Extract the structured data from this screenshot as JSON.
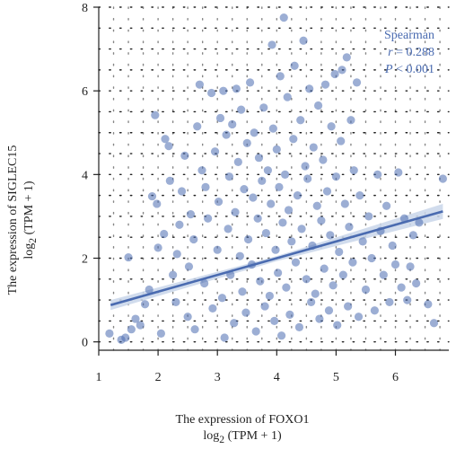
{
  "chart_data": {
    "type": "scatter",
    "xlabel_line1": "The expression of FOXO1",
    "xlabel_line2_prefix": "log",
    "xlabel_line2_sub": "2",
    "xlabel_line2_suffix": " (TPM + 1)",
    "ylabel_line1": "The expression of SIGLEC15",
    "ylabel_line2_prefix": "log",
    "ylabel_line2_sub": "2",
    "ylabel_line2_suffix": " (TPM + 1)",
    "xlim": [
      1.0,
      6.9
    ],
    "ylim": [
      -0.2,
      8.0
    ],
    "xticks": [
      1,
      2,
      3,
      4,
      5,
      6
    ],
    "yticks": [
      0,
      2,
      4,
      6,
      8
    ],
    "grid": "dotted",
    "point_color": "#4a6bb0",
    "band_color": "#c9d6ea",
    "stats": {
      "method": "Spearman",
      "r_label": "r",
      "r_value": " = 0.288",
      "p_label": "P",
      "p_value": " < 0.001"
    },
    "regression": {
      "x": [
        1.2,
        6.8
      ],
      "y": [
        0.88,
        3.12
      ]
    },
    "ci_band": {
      "x": [
        1.2,
        4.0,
        6.8
      ],
      "upper": [
        1.0,
        2.05,
        3.3
      ],
      "lower": [
        0.76,
        1.93,
        2.94
      ]
    },
    "points": [
      [
        1.18,
        0.2
      ],
      [
        1.38,
        0.05
      ],
      [
        1.45,
        0.1
      ],
      [
        1.5,
        2.02
      ],
      [
        1.55,
        0.3
      ],
      [
        1.62,
        0.55
      ],
      [
        1.7,
        0.4
      ],
      [
        1.78,
        0.9
      ],
      [
        1.85,
        1.25
      ],
      [
        1.9,
        3.48
      ],
      [
        1.95,
        5.42
      ],
      [
        1.98,
        3.3
      ],
      [
        2.0,
        2.25
      ],
      [
        2.05,
        0.2
      ],
      [
        2.1,
        2.58
      ],
      [
        2.12,
        4.85
      ],
      [
        2.18,
        4.68
      ],
      [
        2.2,
        3.85
      ],
      [
        2.25,
        1.6
      ],
      [
        2.3,
        0.95
      ],
      [
        2.32,
        2.1
      ],
      [
        2.36,
        2.8
      ],
      [
        2.4,
        3.6
      ],
      [
        2.45,
        4.45
      ],
      [
        2.5,
        0.6
      ],
      [
        2.52,
        1.8
      ],
      [
        2.55,
        3.05
      ],
      [
        2.6,
        2.45
      ],
      [
        2.62,
        0.3
      ],
      [
        2.66,
        5.15
      ],
      [
        2.7,
        6.15
      ],
      [
        2.74,
        4.1
      ],
      [
        2.78,
        1.4
      ],
      [
        2.8,
        3.7
      ],
      [
        2.84,
        2.95
      ],
      [
        2.9,
        5.95
      ],
      [
        2.92,
        0.8
      ],
      [
        2.96,
        4.55
      ],
      [
        3.0,
        2.2
      ],
      [
        3.02,
        3.35
      ],
      [
        3.05,
        5.35
      ],
      [
        3.08,
        1.05
      ],
      [
        3.1,
        6.0
      ],
      [
        3.12,
        0.1
      ],
      [
        3.15,
        4.95
      ],
      [
        3.18,
        2.7
      ],
      [
        3.2,
        3.95
      ],
      [
        3.22,
        1.6
      ],
      [
        3.25,
        5.2
      ],
      [
        3.28,
        0.45
      ],
      [
        3.3,
        3.1
      ],
      [
        3.32,
        6.05
      ],
      [
        3.35,
        4.3
      ],
      [
        3.38,
        2.05
      ],
      [
        3.4,
        5.55
      ],
      [
        3.42,
        1.2
      ],
      [
        3.45,
        3.65
      ],
      [
        3.48,
        0.7
      ],
      [
        3.5,
        4.75
      ],
      [
        3.52,
        2.45
      ],
      [
        3.55,
        6.2
      ],
      [
        3.58,
        1.85
      ],
      [
        3.6,
        3.45
      ],
      [
        3.62,
        5.0
      ],
      [
        3.65,
        0.25
      ],
      [
        3.68,
        2.95
      ],
      [
        3.7,
        4.4
      ],
      [
        3.72,
        1.45
      ],
      [
        3.75,
        3.85
      ],
      [
        3.78,
        5.6
      ],
      [
        3.8,
        0.85
      ],
      [
        3.82,
        2.6
      ],
      [
        3.85,
        4.1
      ],
      [
        3.88,
        1.1
      ],
      [
        3.9,
        3.3
      ],
      [
        3.92,
        7.1
      ],
      [
        3.94,
        5.1
      ],
      [
        3.96,
        0.5
      ],
      [
        3.98,
        2.2
      ],
      [
        4.0,
        4.6
      ],
      [
        4.02,
        1.65
      ],
      [
        4.04,
        3.7
      ],
      [
        4.06,
        6.35
      ],
      [
        4.08,
        0.15
      ],
      [
        4.1,
        2.85
      ],
      [
        4.12,
        7.75
      ],
      [
        4.14,
        4.0
      ],
      [
        4.16,
        1.3
      ],
      [
        4.18,
        5.85
      ],
      [
        4.2,
        3.15
      ],
      [
        4.22,
        0.65
      ],
      [
        4.25,
        2.4
      ],
      [
        4.28,
        4.85
      ],
      [
        4.3,
        6.6
      ],
      [
        4.32,
        1.9
      ],
      [
        4.35,
        3.5
      ],
      [
        4.38,
        0.35
      ],
      [
        4.4,
        5.3
      ],
      [
        4.42,
        2.7
      ],
      [
        4.45,
        7.2
      ],
      [
        4.48,
        4.2
      ],
      [
        4.5,
        1.5
      ],
      [
        4.52,
        3.9
      ],
      [
        4.55,
        6.05
      ],
      [
        4.58,
        0.95
      ],
      [
        4.6,
        2.3
      ],
      [
        4.62,
        4.65
      ],
      [
        4.65,
        1.15
      ],
      [
        4.68,
        3.25
      ],
      [
        4.7,
        5.65
      ],
      [
        4.72,
        0.55
      ],
      [
        4.75,
        2.9
      ],
      [
        4.78,
        4.35
      ],
      [
        4.8,
        1.75
      ],
      [
        4.82,
        6.15
      ],
      [
        4.85,
        3.6
      ],
      [
        4.88,
        0.75
      ],
      [
        4.9,
        2.55
      ],
      [
        4.92,
        5.15
      ],
      [
        4.95,
        1.35
      ],
      [
        4.98,
        6.4
      ],
      [
        5.0,
        3.95
      ],
      [
        5.02,
        0.4
      ],
      [
        5.05,
        2.15
      ],
      [
        5.08,
        4.8
      ],
      [
        5.1,
        6.5
      ],
      [
        5.12,
        1.6
      ],
      [
        5.15,
        3.3
      ],
      [
        5.18,
        6.8
      ],
      [
        5.2,
        0.85
      ],
      [
        5.22,
        2.75
      ],
      [
        5.25,
        5.3
      ],
      [
        5.28,
        1.9
      ],
      [
        5.3,
        4.1
      ],
      [
        5.35,
        6.2
      ],
      [
        5.38,
        0.6
      ],
      [
        5.4,
        3.5
      ],
      [
        5.45,
        2.4
      ],
      [
        5.5,
        1.25
      ],
      [
        5.55,
        3.0
      ],
      [
        5.6,
        2.0
      ],
      [
        5.65,
        0.75
      ],
      [
        5.7,
        4.0
      ],
      [
        5.75,
        2.65
      ],
      [
        5.8,
        1.6
      ],
      [
        5.85,
        3.25
      ],
      [
        5.9,
        0.95
      ],
      [
        5.95,
        2.3
      ],
      [
        6.0,
        1.85
      ],
      [
        6.05,
        4.05
      ],
      [
        6.1,
        1.3
      ],
      [
        6.15,
        2.95
      ],
      [
        6.2,
        1.0
      ],
      [
        6.25,
        1.8
      ],
      [
        6.3,
        2.55
      ],
      [
        6.35,
        1.4
      ],
      [
        6.4,
        2.85
      ],
      [
        6.55,
        0.9
      ],
      [
        6.65,
        0.45
      ],
      [
        6.8,
        3.9
      ]
    ]
  }
}
